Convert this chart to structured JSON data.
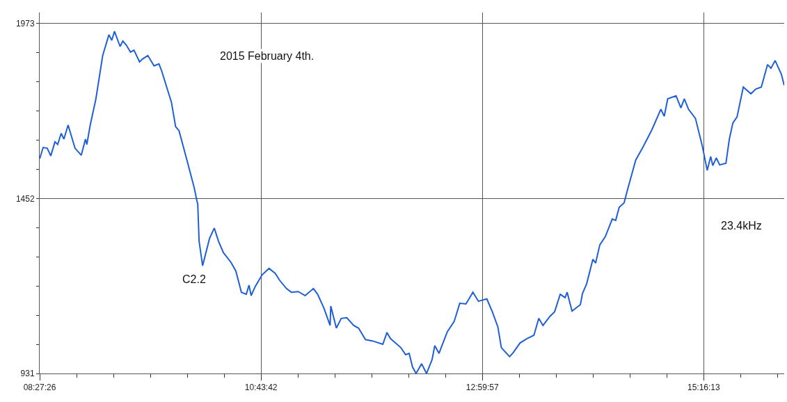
{
  "chart_data": {
    "type": "line",
    "annotations": [
      "2015 February 4th.",
      "C2.2",
      "23.4kHz"
    ],
    "x": [
      8.458,
      8.493,
      8.535,
      8.571,
      8.614,
      8.642,
      8.678,
      8.706,
      8.749,
      8.82,
      8.884,
      8.927,
      8.941,
      8.976,
      9.033,
      9.104,
      9.168,
      9.197,
      9.225,
      9.282,
      9.311,
      9.346,
      9.389,
      9.425,
      9.482,
      9.51,
      9.567,
      9.631,
      9.681,
      9.709,
      9.809,
      9.852,
      9.887,
      9.973,
      10.043,
      10.072,
      10.079,
      10.093,
      10.129,
      10.2,
      10.249,
      10.292,
      10.342,
      10.42,
      10.47,
      10.527,
      10.577,
      10.605,
      10.627,
      10.669,
      10.74,
      10.811,
      10.875,
      10.918,
      10.989,
      11.039,
      11.11,
      11.181,
      11.266,
      11.309,
      11.373,
      11.437,
      11.444,
      11.501,
      11.551,
      11.608,
      11.679,
      11.729,
      11.8,
      11.871,
      11.978,
      12.02,
      12.056,
      12.163,
      12.212,
      12.248,
      12.283,
      12.319,
      12.376,
      12.426,
      12.483,
      12.511,
      12.554,
      12.639,
      12.71,
      12.767,
      12.831,
      12.902,
      12.959,
      13.045,
      13.101,
      13.158,
      13.194,
      13.279,
      13.315,
      13.386,
      13.457,
      13.528,
      13.578,
      13.621,
      13.692,
      13.741,
      13.798,
      13.848,
      13.869,
      13.919,
      14.005,
      14.026,
      14.069,
      14.133,
      14.161,
      14.204,
      14.261,
      14.332,
      14.367,
      14.403,
      14.453,
      14.488,
      14.573,
      14.645,
      14.737,
      14.83,
      14.865,
      14.901,
      14.986,
      15.036,
      15.071,
      15.114,
      15.185,
      15.256,
      15.306,
      15.342,
      15.363,
      15.399,
      15.434,
      15.498,
      15.533,
      15.569,
      15.612,
      15.676,
      15.754,
      15.804,
      15.861,
      15.925,
      15.96,
      16.003,
      16.067,
      16.096
    ],
    "series": [
      {
        "color": "#1f5fd6",
        "values": [
          1571,
          1604,
          1602,
          1579,
          1621,
          1613,
          1646,
          1629,
          1671,
          1602,
          1581,
          1629,
          1613,
          1671,
          1747,
          1878,
          1940,
          1923,
          1950,
          1905,
          1921,
          1909,
          1888,
          1894,
          1859,
          1867,
          1878,
          1847,
          1853,
          1832,
          1739,
          1666,
          1654,
          1561,
          1484,
          1443,
          1436,
          1325,
          1252,
          1333,
          1364,
          1325,
          1291,
          1262,
          1236,
          1173,
          1167,
          1194,
          1163,
          1190,
          1225,
          1244,
          1229,
          1209,
          1184,
          1173,
          1175,
          1163,
          1184,
          1167,
          1126,
          1074,
          1132,
          1066,
          1095,
          1097,
          1074,
          1066,
          1032,
          1028,
          1018,
          1053,
          1035,
          1008,
          987,
          991,
          950,
          931,
          960,
          931,
          972,
          1014,
          991,
          1055,
          1086,
          1140,
          1138,
          1173,
          1146,
          1153,
          1115,
          1070,
          1008,
          981,
          993,
          1022,
          1035,
          1045,
          1095,
          1074,
          1101,
          1115,
          1167,
          1157,
          1173,
          1117,
          1136,
          1169,
          1198,
          1271,
          1260,
          1314,
          1339,
          1391,
          1387,
          1426,
          1439,
          1478,
          1567,
          1604,
          1656,
          1718,
          1697,
          1749,
          1758,
          1722,
          1749,
          1718,
          1691,
          1608,
          1536,
          1577,
          1550,
          1573,
          1552,
          1557,
          1629,
          1677,
          1695,
          1784,
          1764,
          1778,
          1784,
          1851,
          1840,
          1863,
          1822,
          1789
        ]
      }
    ],
    "xlim": [
      8.45722,
      16.096
    ],
    "xticks": [
      {
        "value": 8.45722,
        "label": "08:27:26"
      },
      {
        "value": 8.8357,
        "label": null
      },
      {
        "value": 9.2143,
        "label": null
      },
      {
        "value": 9.5928,
        "label": null
      },
      {
        "value": 9.9713,
        "label": null
      },
      {
        "value": 10.3498,
        "label": null
      },
      {
        "value": 10.72833,
        "label": "10:43:42"
      },
      {
        "value": 11.1068,
        "label": null
      },
      {
        "value": 11.4853,
        "label": null
      },
      {
        "value": 11.8639,
        "label": null
      },
      {
        "value": 12.2424,
        "label": null
      },
      {
        "value": 12.6209,
        "label": null
      },
      {
        "value": 12.99917,
        "label": "12:59:57"
      },
      {
        "value": 13.3777,
        "label": null
      },
      {
        "value": 13.7562,
        "label": null
      },
      {
        "value": 14.1347,
        "label": null
      },
      {
        "value": 14.5132,
        "label": null
      },
      {
        "value": 14.8917,
        "label": null
      },
      {
        "value": 15.27028,
        "label": "15:16:13"
      },
      {
        "value": 15.6488,
        "label": null
      },
      {
        "value": 16.0273,
        "label": null
      }
    ],
    "ylim": [
      931,
      2006
    ],
    "yticks": [
      931,
      {
        "value": 1017.83,
        "label": null
      },
      {
        "value": 1104.67,
        "label": null
      },
      {
        "value": 1191.5,
        "label": null
      },
      {
        "value": 1278.33,
        "label": null
      },
      {
        "value": 1365.17,
        "label": null
      },
      1452,
      {
        "value": 1538.83,
        "label": null
      },
      {
        "value": 1625.67,
        "label": null
      },
      {
        "value": 1712.5,
        "label": null
      },
      {
        "value": 1799.33,
        "label": null
      },
      {
        "value": 1886.17,
        "label": null
      },
      1973
    ],
    "grid": true,
    "marker": "none",
    "line_style": "solid"
  }
}
